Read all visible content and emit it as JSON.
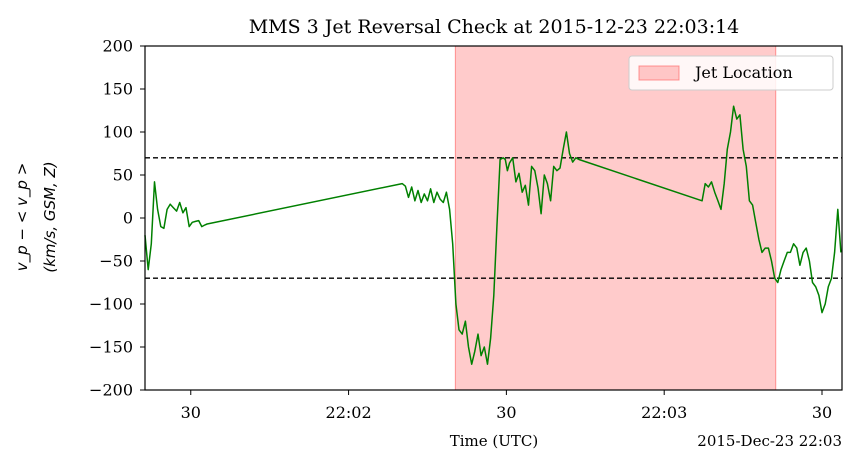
{
  "chart_data": {
    "type": "line",
    "title": "MMS 3 Jet Reversal Check at 2015-12-23 22:03:14",
    "xlabel": "Time (UTC)",
    "ylabel_line1": "v_p − < v_p >",
    "ylabel_line2": "(km/s, GSM, Z)",
    "offset_label": "2015-Dec-23 22:03",
    "x_unit": "seconds after 22:01:00 UTC",
    "xlim": [
      21.3,
      153.8
    ],
    "ylim": [
      -200,
      200
    ],
    "x_ticks": [
      {
        "t": 30,
        "label": "30"
      },
      {
        "t": 60,
        "label": "22:02"
      },
      {
        "t": 90,
        "label": "30"
      },
      {
        "t": 120,
        "label": "22:03"
      },
      {
        "t": 150,
        "label": "30"
      }
    ],
    "y_ticks": [
      {
        "v": 200,
        "label": "200"
      },
      {
        "v": 150,
        "label": "150"
      },
      {
        "v": 100,
        "label": "100"
      },
      {
        "v": 50,
        "label": "50"
      },
      {
        "v": 0,
        "label": "0"
      },
      {
        "v": -50,
        "label": "−50"
      },
      {
        "v": -100,
        "label": "−100"
      },
      {
        "v": -150,
        "label": "−150"
      },
      {
        "v": -200,
        "label": "−200"
      }
    ],
    "hlines": [
      70,
      -70
    ],
    "span": {
      "start": 80.3,
      "end": 141.2,
      "color": "#ff6b6b",
      "label": "Jet Location"
    },
    "legend_position": "top-right",
    "grid": false,
    "series": [
      {
        "color": "#008000",
        "x": [
          21.3,
          21.9,
          22.5,
          23.1,
          23.7,
          24.3,
          24.9,
          25.5,
          26.1,
          26.7,
          27.3,
          27.9,
          28.5,
          29.1,
          29.7,
          30.3,
          30.9,
          31.5,
          32.1,
          32.7,
          33.1,
          70.2,
          70.8,
          71.4,
          72.0,
          72.6,
          73.2,
          73.8,
          74.4,
          75.0,
          75.6,
          76.2,
          76.8,
          77.4,
          78.0,
          78.6,
          79.2,
          79.8,
          80.4,
          81.0,
          81.6,
          82.2,
          82.8,
          83.4,
          84.0,
          84.6,
          85.2,
          85.8,
          86.4,
          87.0,
          87.6,
          88.2,
          88.8,
          89.4,
          89.8,
          90.2,
          90.6,
          91.2,
          91.8,
          92.4,
          93.0,
          93.6,
          94.2,
          94.8,
          95.4,
          96.0,
          96.6,
          97.2,
          97.8,
          98.4,
          99.0,
          99.6,
          100.2,
          100.8,
          101.4,
          102.0,
          102.6,
          103.2,
          103.8,
          127.2,
          127.8,
          128.4,
          129.0,
          129.6,
          130.2,
          130.8,
          131.4,
          132.0,
          132.6,
          133.2,
          133.8,
          134.4,
          135.0,
          135.6,
          136.2,
          136.8,
          137.4,
          138.0,
          138.6,
          139.2,
          139.8,
          140.4,
          141.0,
          141.6,
          142.2,
          142.8,
          143.4,
          144.0,
          144.6,
          145.2,
          145.8,
          146.4,
          147.0,
          147.6,
          148.2,
          148.8,
          149.4,
          150.0,
          150.6,
          151.2,
          151.8,
          152.4,
          153.0,
          153.6
        ],
        "y": [
          -20,
          -60,
          -30,
          42,
          10,
          -10,
          -12,
          10,
          16,
          12,
          8,
          18,
          6,
          12,
          -10,
          -5,
          -4,
          -3,
          -10,
          -8,
          -7,
          40,
          37,
          24,
          36,
          20,
          32,
          18,
          28,
          20,
          34,
          18,
          30,
          22,
          18,
          30,
          10,
          -30,
          -100,
          -130,
          -135,
          -120,
          -150,
          -170,
          -155,
          -135,
          -160,
          -150,
          -170,
          -140,
          -90,
          -10,
          68,
          70,
          68,
          55,
          64,
          70,
          42,
          52,
          30,
          38,
          15,
          60,
          55,
          35,
          5,
          50,
          40,
          20,
          60,
          55,
          58,
          80,
          100,
          75,
          65,
          70,
          68,
          20,
          40,
          36,
          42,
          30,
          20,
          10,
          40,
          80,
          100,
          130,
          115,
          120,
          80,
          60,
          20,
          15,
          -5,
          -25,
          -40,
          -35,
          -35,
          -50,
          -70,
          -75,
          -60,
          -50,
          -40,
          -40,
          -30,
          -35,
          -55,
          -40,
          -35,
          -50,
          -75,
          -80,
          -90,
          -110,
          -100,
          -80,
          -70,
          -40,
          10,
          -40
        ]
      }
    ]
  }
}
